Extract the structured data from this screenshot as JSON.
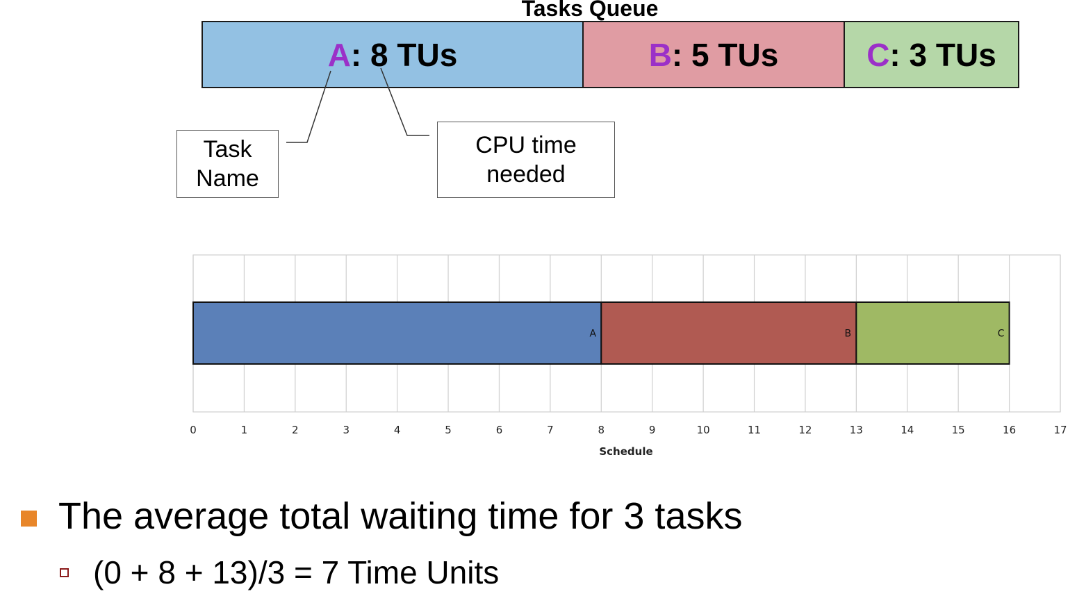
{
  "queue": {
    "title": "Tasks Queue",
    "tasks": [
      {
        "name": "A",
        "time": ": 8 TUs",
        "color": "#93c1e3"
      },
      {
        "name": "B",
        "time": ": 5 TUs",
        "color": "#e09ca3"
      },
      {
        "name": "C",
        "time": ": 3 TUs",
        "color": "#b5d7a8"
      }
    ]
  },
  "callouts": {
    "task_name": "Task\nName",
    "cpu_time": "CPU time\nneeded"
  },
  "chart_data": {
    "type": "bar",
    "orientation": "horizontal",
    "stacked": true,
    "xlabel": "Schedule",
    "xlim": [
      0,
      17
    ],
    "xticks": [
      0,
      1,
      2,
      3,
      4,
      5,
      6,
      7,
      8,
      9,
      10,
      11,
      12,
      13,
      14,
      15,
      16,
      17
    ],
    "grid": true,
    "series": [
      {
        "name": "A",
        "start": 0,
        "duration": 8,
        "color": "#5b80b8"
      },
      {
        "name": "B",
        "start": 8,
        "duration": 5,
        "color": "#b05a52"
      },
      {
        "name": "C",
        "start": 13,
        "duration": 3,
        "color": "#9fb964"
      }
    ]
  },
  "summary": {
    "main": "The average total waiting time for 3 tasks",
    "sub": "(0 + 8 + 13)/3 = 7 Time Units"
  }
}
